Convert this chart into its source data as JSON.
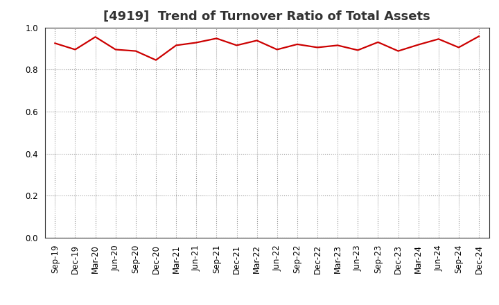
{
  "title": "[4919]  Trend of Turnover Ratio of Total Assets",
  "x_labels": [
    "Sep-19",
    "Dec-19",
    "Mar-20",
    "Jun-20",
    "Sep-20",
    "Dec-20",
    "Mar-21",
    "Jun-21",
    "Sep-21",
    "Dec-21",
    "Mar-22",
    "Jun-22",
    "Sep-22",
    "Dec-22",
    "Mar-23",
    "Jun-23",
    "Sep-23",
    "Dec-23",
    "Mar-24",
    "Jun-24",
    "Sep-24",
    "Dec-24"
  ],
  "y_values": [
    0.925,
    0.895,
    0.955,
    0.895,
    0.888,
    0.845,
    0.915,
    0.928,
    0.948,
    0.915,
    0.938,
    0.895,
    0.92,
    0.905,
    0.915,
    0.892,
    0.93,
    0.888,
    0.918,
    0.945,
    0.905,
    0.958
  ],
  "ylim": [
    0.0,
    1.0
  ],
  "yticks": [
    0.0,
    0.2,
    0.4,
    0.6,
    0.8,
    1.0
  ],
  "line_color": "#cc0000",
  "line_width": 1.6,
  "grid_color": "#999999",
  "background_color": "#ffffff",
  "title_fontsize": 13,
  "tick_fontsize": 8.5,
  "title_color": "#333333",
  "title_fontweight": "bold"
}
